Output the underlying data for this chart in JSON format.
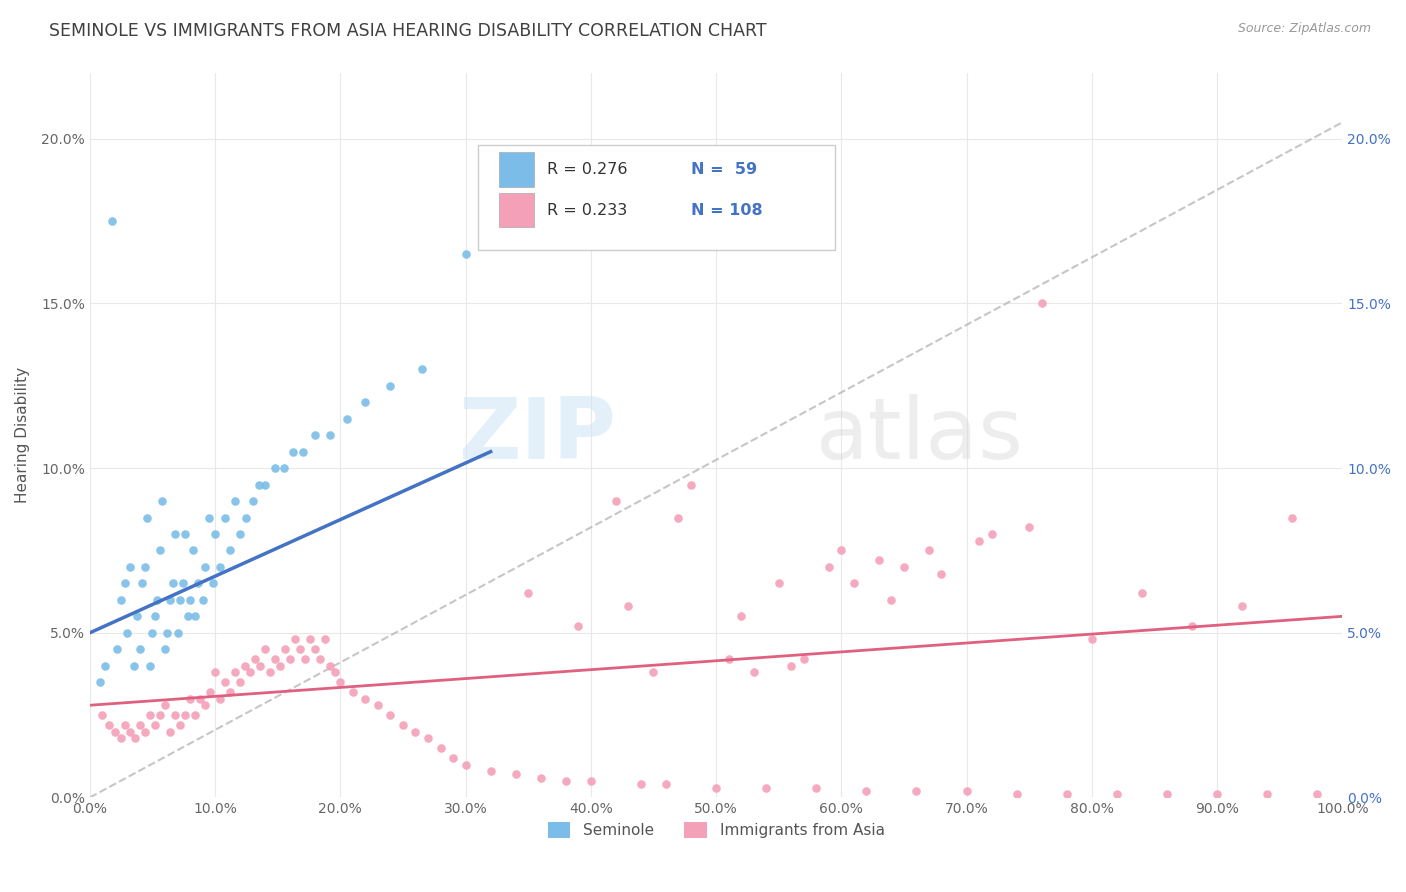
{
  "title": "SEMINOLE VS IMMIGRANTS FROM ASIA HEARING DISABILITY CORRELATION CHART",
  "source": "Source: ZipAtlas.com",
  "ylabel": "Hearing Disability",
  "watermark_zip": "ZIP",
  "watermark_atlas": "atlas",
  "legend_r1": "R = 0.276",
  "legend_n1": "N =  59",
  "legend_r2": "R = 0.233",
  "legend_n2": "N = 108",
  "seminole_color": "#7bbde8",
  "seminole_line_color": "#4472C4",
  "immigrants_color": "#f4a0b8",
  "immigrants_line_color": "#e06080",
  "ref_line_color": "#b8b8b8",
  "background_color": "#ffffff",
  "grid_color": "#e8e8e8",
  "title_color": "#404040",
  "blue_text_color": "#4472C4",
  "seminole_scatter_x": [
    0.008,
    0.012,
    0.018,
    0.022,
    0.025,
    0.028,
    0.03,
    0.032,
    0.035,
    0.038,
    0.04,
    0.042,
    0.044,
    0.046,
    0.048,
    0.05,
    0.052,
    0.054,
    0.056,
    0.058,
    0.06,
    0.062,
    0.064,
    0.066,
    0.068,
    0.07,
    0.072,
    0.074,
    0.076,
    0.078,
    0.08,
    0.082,
    0.084,
    0.086,
    0.09,
    0.092,
    0.095,
    0.098,
    0.1,
    0.104,
    0.108,
    0.112,
    0.116,
    0.12,
    0.125,
    0.13,
    0.135,
    0.14,
    0.148,
    0.155,
    0.162,
    0.17,
    0.18,
    0.192,
    0.205,
    0.22,
    0.24,
    0.265,
    0.3
  ],
  "seminole_scatter_y": [
    0.035,
    0.04,
    0.175,
    0.045,
    0.06,
    0.065,
    0.05,
    0.07,
    0.04,
    0.055,
    0.045,
    0.065,
    0.07,
    0.085,
    0.04,
    0.05,
    0.055,
    0.06,
    0.075,
    0.09,
    0.045,
    0.05,
    0.06,
    0.065,
    0.08,
    0.05,
    0.06,
    0.065,
    0.08,
    0.055,
    0.06,
    0.075,
    0.055,
    0.065,
    0.06,
    0.07,
    0.085,
    0.065,
    0.08,
    0.07,
    0.085,
    0.075,
    0.09,
    0.08,
    0.085,
    0.09,
    0.095,
    0.095,
    0.1,
    0.1,
    0.105,
    0.105,
    0.11,
    0.11,
    0.115,
    0.12,
    0.125,
    0.13,
    0.165
  ],
  "immigrants_scatter_x": [
    0.01,
    0.015,
    0.02,
    0.025,
    0.028,
    0.032,
    0.036,
    0.04,
    0.044,
    0.048,
    0.052,
    0.056,
    0.06,
    0.064,
    0.068,
    0.072,
    0.076,
    0.08,
    0.084,
    0.088,
    0.092,
    0.096,
    0.1,
    0.104,
    0.108,
    0.112,
    0.116,
    0.12,
    0.124,
    0.128,
    0.132,
    0.136,
    0.14,
    0.144,
    0.148,
    0.152,
    0.156,
    0.16,
    0.164,
    0.168,
    0.172,
    0.176,
    0.18,
    0.184,
    0.188,
    0.192,
    0.196,
    0.2,
    0.21,
    0.22,
    0.23,
    0.24,
    0.25,
    0.26,
    0.27,
    0.28,
    0.29,
    0.3,
    0.32,
    0.34,
    0.36,
    0.38,
    0.4,
    0.42,
    0.44,
    0.46,
    0.48,
    0.5,
    0.52,
    0.54,
    0.56,
    0.58,
    0.6,
    0.62,
    0.64,
    0.66,
    0.68,
    0.7,
    0.72,
    0.74,
    0.76,
    0.78,
    0.8,
    0.82,
    0.84,
    0.86,
    0.88,
    0.9,
    0.92,
    0.94,
    0.96,
    0.98,
    0.45,
    0.51,
    0.55,
    0.59,
    0.63,
    0.67,
    0.71,
    0.75,
    0.35,
    0.39,
    0.43,
    0.47,
    0.53,
    0.57,
    0.61,
    0.65
  ],
  "immigrants_scatter_y": [
    0.025,
    0.022,
    0.02,
    0.018,
    0.022,
    0.02,
    0.018,
    0.022,
    0.02,
    0.025,
    0.022,
    0.025,
    0.028,
    0.02,
    0.025,
    0.022,
    0.025,
    0.03,
    0.025,
    0.03,
    0.028,
    0.032,
    0.038,
    0.03,
    0.035,
    0.032,
    0.038,
    0.035,
    0.04,
    0.038,
    0.042,
    0.04,
    0.045,
    0.038,
    0.042,
    0.04,
    0.045,
    0.042,
    0.048,
    0.045,
    0.042,
    0.048,
    0.045,
    0.042,
    0.048,
    0.04,
    0.038,
    0.035,
    0.032,
    0.03,
    0.028,
    0.025,
    0.022,
    0.02,
    0.018,
    0.015,
    0.012,
    0.01,
    0.008,
    0.007,
    0.006,
    0.005,
    0.005,
    0.09,
    0.004,
    0.004,
    0.095,
    0.003,
    0.055,
    0.003,
    0.04,
    0.003,
    0.075,
    0.002,
    0.06,
    0.002,
    0.068,
    0.002,
    0.08,
    0.001,
    0.15,
    0.001,
    0.048,
    0.001,
    0.062,
    0.001,
    0.052,
    0.001,
    0.058,
    0.001,
    0.085,
    0.001,
    0.038,
    0.042,
    0.065,
    0.07,
    0.072,
    0.075,
    0.078,
    0.082,
    0.062,
    0.052,
    0.058,
    0.085,
    0.038,
    0.042,
    0.065,
    0.07
  ],
  "xlim": [
    0.0,
    1.0
  ],
  "ylim": [
    0.0,
    0.22
  ],
  "seminole_line_x": [
    0.0,
    0.32
  ],
  "seminole_line_y": [
    0.05,
    0.105
  ],
  "immigrants_line_x": [
    0.0,
    1.0
  ],
  "immigrants_line_y": [
    0.028,
    0.055
  ],
  "ref_line_x": [
    0.0,
    1.0
  ],
  "ref_line_y": [
    0.0,
    0.205
  ],
  "x_ticks": [
    0.0,
    0.1,
    0.2,
    0.3,
    0.4,
    0.5,
    0.6,
    0.7,
    0.8,
    0.9,
    1.0
  ],
  "y_ticks": [
    0.0,
    0.05,
    0.1,
    0.15,
    0.2
  ]
}
